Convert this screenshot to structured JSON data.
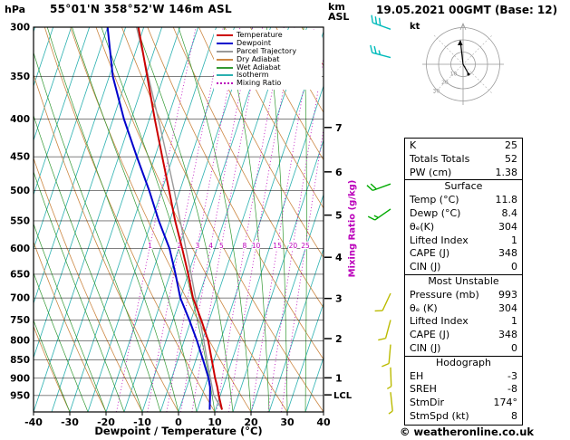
{
  "header": {
    "pressure_unit": "hPa",
    "station_title": "55°01'N 358°52'W 146m ASL",
    "altitude_unit_top": "km",
    "altitude_unit_bottom": "ASL",
    "datetime_title": "19.05.2021 00GMT (Base: 12)"
  },
  "legend": {
    "items": [
      {
        "key": "temperature",
        "label": "Temperature",
        "color": "#cc0000",
        "style": "solid"
      },
      {
        "key": "dewpoint",
        "label": "Dewpoint",
        "color": "#0000cc",
        "style": "solid"
      },
      {
        "key": "parcel",
        "label": "Parcel Trajectory",
        "color": "#999999",
        "style": "solid"
      },
      {
        "key": "dry_adiabat",
        "label": "Dry Adiabat",
        "color": "#cc8844",
        "style": "solid"
      },
      {
        "key": "wet_adiabat",
        "label": "Wet Adiabat",
        "color": "#339933",
        "style": "solid"
      },
      {
        "key": "isotherm",
        "label": "Isotherm",
        "color": "#2ab0b0",
        "style": "solid"
      },
      {
        "key": "mixing_ratio",
        "label": "Mixing Ratio",
        "color": "#bb00bb",
        "style": "dotted"
      }
    ]
  },
  "axes": {
    "pressure_ticks": [
      300,
      350,
      400,
      450,
      500,
      550,
      600,
      650,
      700,
      750,
      800,
      850,
      900,
      950
    ],
    "temperature_ticks": [
      -40,
      -30,
      -20,
      -10,
      0,
      10,
      20,
      30,
      40
    ],
    "x_axis_label": "Dewpoint / Temperature (°C)",
    "mixing_ratio_axis_label": "Mixing Ratio (g/kg)",
    "mixing_ratio_values": [
      1,
      2,
      3,
      4,
      5,
      8,
      10,
      15,
      20,
      25
    ],
    "altitude_km_ticks": [
      7,
      6,
      5,
      4,
      3,
      2,
      1
    ],
    "lcl_label": "LCL"
  },
  "hodograph": {
    "unit_label": "kt",
    "ring_labels": [
      "10",
      "20",
      "30"
    ]
  },
  "stats_table": {
    "groups": [
      {
        "title": "",
        "rows": [
          [
            "K",
            "25"
          ],
          [
            "Totals Totals",
            "52"
          ],
          [
            "PW (cm)",
            "1.38"
          ]
        ]
      },
      {
        "title": "Surface",
        "rows": [
          [
            "Temp (°C)",
            "11.8"
          ],
          [
            "Dewp (°C)",
            "8.4"
          ],
          [
            "θₑ(K)",
            "304"
          ],
          [
            "Lifted Index",
            "1"
          ],
          [
            "CAPE (J)",
            "348"
          ],
          [
            "CIN (J)",
            "0"
          ]
        ]
      },
      {
        "title": "Most Unstable",
        "rows": [
          [
            "Pressure (mb)",
            "993"
          ],
          [
            "θₑ (K)",
            "304"
          ],
          [
            "Lifted Index",
            "1"
          ],
          [
            "CAPE (J)",
            "348"
          ],
          [
            "CIN (J)",
            "0"
          ]
        ]
      },
      {
        "title": "Hodograph",
        "rows": [
          [
            "EH",
            "-3"
          ],
          [
            "SREH",
            "-8"
          ],
          [
            "StmDir",
            "174°"
          ],
          [
            "StmSpd (kt)",
            "8"
          ]
        ]
      }
    ]
  },
  "footer": {
    "copyright": "© weatheronline.co.uk"
  },
  "chart_data": {
    "type": "line",
    "title": "Skew-T log-P sounding 55°01'N 358°52'W 146m ASL 19.05.2021 00GMT",
    "x_axis": {
      "label": "Dewpoint / Temperature (°C)",
      "range": [
        -40,
        40
      ],
      "skewed": true
    },
    "y_axis": {
      "label": "hPa",
      "scale": "log",
      "range": [
        1000,
        300
      ]
    },
    "lcl_hpa": 948,
    "series": [
      {
        "name": "Temperature",
        "color": "#cc0000",
        "pressure_hpa": [
          993,
          950,
          925,
          900,
          850,
          800,
          750,
          700,
          650,
          600,
          550,
          500,
          450,
          400,
          350,
          300
        ],
        "temp_c": [
          11.8,
          9.6,
          8.4,
          7.0,
          4.4,
          1.6,
          -2.2,
          -6.5,
          -10.0,
          -14.0,
          -18.5,
          -23.0,
          -28.0,
          -33.5,
          -39.5,
          -46.5
        ]
      },
      {
        "name": "Dewpoint",
        "color": "#0000cc",
        "pressure_hpa": [
          993,
          950,
          925,
          900,
          850,
          800,
          750,
          700,
          650,
          600,
          550,
          500,
          450,
          400,
          350,
          300
        ],
        "temp_c": [
          8.4,
          7.2,
          6.4,
          5.2,
          2.0,
          -1.5,
          -5.5,
          -10.0,
          -13.5,
          -17.5,
          -23.0,
          -28.5,
          -35.0,
          -42.0,
          -49.0,
          -55.0
        ]
      },
      {
        "name": "Parcel Trajectory",
        "color": "#999999",
        "pressure_hpa": [
          993,
          948,
          900,
          850,
          800,
          750,
          700,
          650,
          600,
          550,
          500,
          450,
          400,
          350,
          300
        ],
        "temp_c": [
          11.8,
          8.1,
          5.7,
          3.1,
          0.4,
          -2.6,
          -5.8,
          -9.2,
          -13.0,
          -17.1,
          -21.6,
          -26.7,
          -32.5,
          -39.2,
          -47.0
        ]
      }
    ],
    "wind_barbs": [
      {
        "pressure_hpa": 302,
        "speed_kt": 30,
        "direction_deg": 290,
        "color": "#00bbbb"
      },
      {
        "pressure_hpa": 330,
        "speed_kt": 25,
        "direction_deg": 285,
        "color": "#00bbbb"
      },
      {
        "pressure_hpa": 490,
        "speed_kt": 20,
        "direction_deg": 250,
        "color": "#00aa00"
      },
      {
        "pressure_hpa": 530,
        "speed_kt": 15,
        "direction_deg": 235,
        "color": "#00aa00"
      },
      {
        "pressure_hpa": 690,
        "speed_kt": 10,
        "direction_deg": 205,
        "color": "#bbbb00"
      },
      {
        "pressure_hpa": 750,
        "speed_kt": 10,
        "direction_deg": 195,
        "color": "#bbbb00"
      },
      {
        "pressure_hpa": 810,
        "speed_kt": 10,
        "direction_deg": 185,
        "color": "#bbbb00"
      },
      {
        "pressure_hpa": 870,
        "speed_kt": 8,
        "direction_deg": 178,
        "color": "#bbbb00"
      },
      {
        "pressure_hpa": 940,
        "speed_kt": 8,
        "direction_deg": 174,
        "color": "#bbbb00"
      }
    ],
    "background_lines": {
      "isotherm_step_c": 5,
      "dry_adiabat_step_c": 10,
      "wet_adiabat_step_c": 5,
      "mixing_ratio_g_kg": [
        1,
        2,
        3,
        4,
        5,
        8,
        10,
        15,
        20,
        25
      ]
    }
  }
}
